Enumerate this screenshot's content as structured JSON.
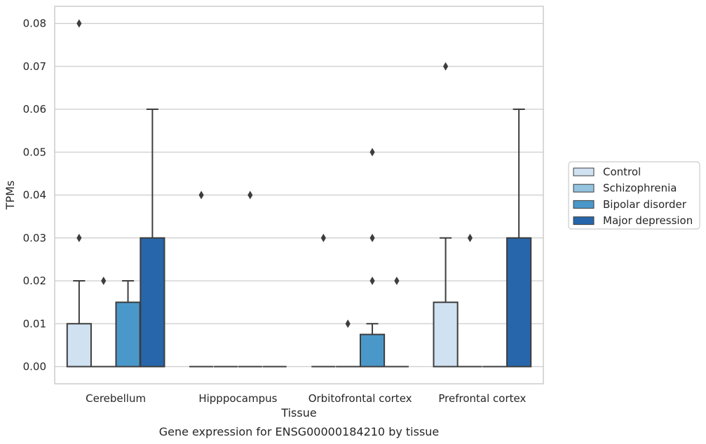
{
  "chart_data": {
    "type": "boxplot",
    "title": "Gene expression for ENSG00000184210 by tissue",
    "xlabel": "Tissue",
    "ylabel": "TPMs",
    "ylim": [
      -0.004,
      0.084
    ],
    "yticks": [
      "0.00",
      "0.01",
      "0.02",
      "0.03",
      "0.04",
      "0.05",
      "0.06",
      "0.07",
      "0.08"
    ],
    "grid": "horizontal",
    "legend_position": "right",
    "categories": [
      "Cerebellum",
      "Hipppocampus",
      "Orbitofrontal cortex",
      "Prefrontal cortex"
    ],
    "series": [
      {
        "name": "Control",
        "color": "#d0e1f2",
        "boxes": [
          {
            "q1": 0.0,
            "median": 0.0,
            "q3": 0.01,
            "whisker_low": 0.0,
            "whisker_high": 0.02,
            "outliers": [
              0.03,
              0.08
            ]
          },
          {
            "q1": 0.0,
            "median": 0.0,
            "q3": 0.0,
            "whisker_low": 0.0,
            "whisker_high": 0.0,
            "outliers": [
              0.04
            ]
          },
          {
            "q1": 0.0,
            "median": 0.0,
            "q3": 0.0,
            "whisker_low": 0.0,
            "whisker_high": 0.0,
            "outliers": [
              0.03
            ]
          },
          {
            "q1": 0.0,
            "median": 0.0,
            "q3": 0.015,
            "whisker_low": 0.0,
            "whisker_high": 0.03,
            "outliers": [
              0.07
            ]
          }
        ]
      },
      {
        "name": "Schizophrenia",
        "color": "#94c4df",
        "boxes": [
          {
            "q1": 0.0,
            "median": 0.0,
            "q3": 0.0,
            "whisker_low": 0.0,
            "whisker_high": 0.0,
            "outliers": [
              0.02
            ]
          },
          {
            "q1": 0.0,
            "median": 0.0,
            "q3": 0.0,
            "whisker_low": 0.0,
            "whisker_high": 0.0,
            "outliers": []
          },
          {
            "q1": 0.0,
            "median": 0.0,
            "q3": 0.0,
            "whisker_low": 0.0,
            "whisker_high": 0.0,
            "outliers": [
              0.01
            ]
          },
          {
            "q1": 0.0,
            "median": 0.0,
            "q3": 0.0,
            "whisker_low": 0.0,
            "whisker_high": 0.0,
            "outliers": [
              0.03
            ]
          }
        ]
      },
      {
        "name": "Bipolar disorder",
        "color": "#4a98c9",
        "boxes": [
          {
            "q1": 0.0,
            "median": 0.0,
            "q3": 0.015,
            "whisker_low": 0.0,
            "whisker_high": 0.02,
            "outliers": []
          },
          {
            "q1": 0.0,
            "median": 0.0,
            "q3": 0.0,
            "whisker_low": 0.0,
            "whisker_high": 0.0,
            "outliers": [
              0.04
            ]
          },
          {
            "q1": 0.0,
            "median": 0.0,
            "q3": 0.0075,
            "whisker_low": 0.0,
            "whisker_high": 0.01,
            "outliers": [
              0.02,
              0.03,
              0.05
            ]
          },
          {
            "q1": 0.0,
            "median": 0.0,
            "q3": 0.0,
            "whisker_low": 0.0,
            "whisker_high": 0.0,
            "outliers": []
          }
        ]
      },
      {
        "name": "Major depression",
        "color": "#2766ab",
        "boxes": [
          {
            "q1": 0.0,
            "median": 0.0,
            "q3": 0.03,
            "whisker_low": 0.0,
            "whisker_high": 0.06,
            "outliers": []
          },
          {
            "q1": 0.0,
            "median": 0.0,
            "q3": 0.0,
            "whisker_low": 0.0,
            "whisker_high": 0.0,
            "outliers": []
          },
          {
            "q1": 0.0,
            "median": 0.0,
            "q3": 0.0,
            "whisker_low": 0.0,
            "whisker_high": 0.0,
            "outliers": [
              0.02
            ]
          },
          {
            "q1": 0.0,
            "median": 0.0,
            "q3": 0.03,
            "whisker_low": 0.0,
            "whisker_high": 0.06,
            "outliers": []
          }
        ]
      }
    ]
  }
}
